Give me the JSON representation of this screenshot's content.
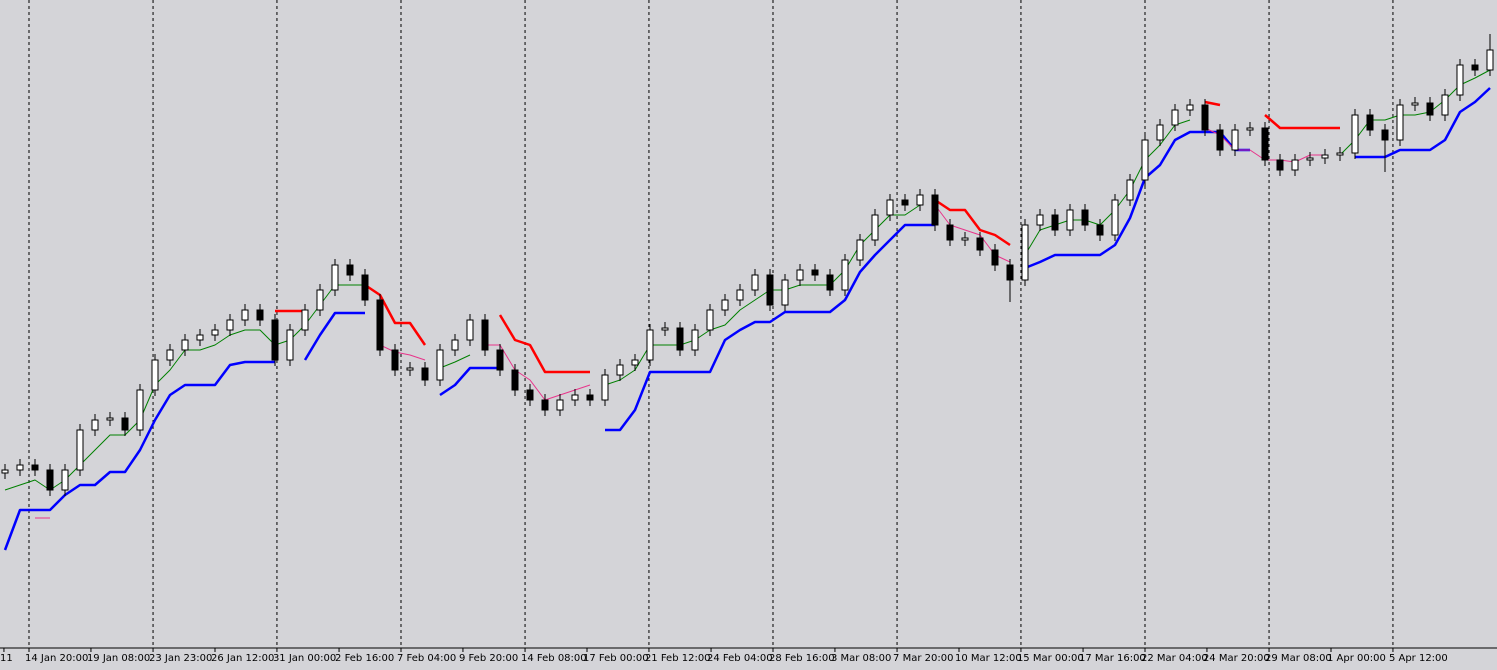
{
  "chart_data": {
    "type": "candlestick",
    "xlim": [
      -0.333,
      99.467
    ],
    "ylim": [
      0,
      648
    ],
    "grid": true,
    "grid_every": 2,
    "bull_color": "#ffffff",
    "bear_color": "#000000",
    "xticks": [
      {
        "value": -0.07,
        "label": "11"
      },
      {
        "value": 1.6,
        "label": "14 Jan 20:00"
      },
      {
        "value": 5.73,
        "label": "19 Jan 08:00"
      },
      {
        "value": 9.87,
        "label": "23 Jan 23:00"
      },
      {
        "value": 14.0,
        "label": "26 Jan 12:00"
      },
      {
        "value": 18.13,
        "label": "31 Jan 00:00"
      },
      {
        "value": 22.27,
        "label": "2 Feb 16:00"
      },
      {
        "value": 26.4,
        "label": "7 Feb 04:00"
      },
      {
        "value": 30.53,
        "label": "9 Feb 20:00"
      },
      {
        "value": 34.67,
        "label": "14 Feb 08:00"
      },
      {
        "value": 38.8,
        "label": "17 Feb 00:00"
      },
      {
        "value": 42.93,
        "label": "21 Feb 12:00"
      },
      {
        "value": 47.07,
        "label": "24 Feb 04:00"
      },
      {
        "value": 51.2,
        "label": "28 Feb 16:00"
      },
      {
        "value": 55.33,
        "label": "3 Mar 08:00"
      },
      {
        "value": 59.47,
        "label": "7 Mar 20:00"
      },
      {
        "value": 63.6,
        "label": "10 Mar 12:00"
      },
      {
        "value": 67.73,
        "label": "15 Mar 00:00"
      },
      {
        "value": 71.87,
        "label": "17 Mar 16:00"
      },
      {
        "value": 76.0,
        "label": "22 Mar 04:00"
      },
      {
        "value": 80.13,
        "label": "24 Mar 20:00"
      },
      {
        "value": 84.27,
        "label": "29 Mar 08:00"
      },
      {
        "value": 88.4,
        "label": "1 Apr 00:00"
      },
      {
        "value": 92.53,
        "label": "5 Apr 12:00"
      }
    ],
    "candles": [
      [
        175,
        184,
        169,
        178
      ],
      [
        178,
        189,
        172,
        183
      ],
      [
        183,
        189,
        172,
        178
      ],
      [
        178,
        184,
        152,
        158
      ],
      [
        158,
        184,
        152,
        178
      ],
      [
        178,
        224,
        172,
        218
      ],
      [
        218,
        234,
        212,
        228
      ],
      [
        228,
        236,
        222,
        230
      ],
      [
        230,
        236,
        212,
        218
      ],
      [
        218,
        264,
        212,
        258
      ],
      [
        258,
        294,
        252,
        288
      ],
      [
        288,
        304,
        282,
        298
      ],
      [
        298,
        314,
        292,
        308
      ],
      [
        308,
        319,
        302,
        313
      ],
      [
        313,
        324,
        307,
        318
      ],
      [
        318,
        334,
        312,
        328
      ],
      [
        328,
        344,
        322,
        338
      ],
      [
        338,
        344,
        322,
        328
      ],
      [
        328,
        334,
        282,
        288
      ],
      [
        288,
        324,
        282,
        318
      ],
      [
        318,
        344,
        312,
        338
      ],
      [
        338,
        364,
        332,
        358
      ],
      [
        358,
        389,
        352,
        383
      ],
      [
        383,
        389,
        367,
        373
      ],
      [
        373,
        379,
        342,
        348
      ],
      [
        348,
        354,
        292,
        298
      ],
      [
        298,
        304,
        272,
        278
      ],
      [
        278,
        286,
        272,
        280
      ],
      [
        280,
        286,
        262,
        268
      ],
      [
        268,
        304,
        262,
        298
      ],
      [
        298,
        314,
        292,
        308
      ],
      [
        308,
        334,
        302,
        328
      ],
      [
        328,
        334,
        292,
        298
      ],
      [
        298,
        304,
        272,
        278
      ],
      [
        278,
        284,
        252,
        258
      ],
      [
        258,
        264,
        242,
        248
      ],
      [
        248,
        254,
        232,
        238
      ],
      [
        238,
        254,
        232,
        248
      ],
      [
        248,
        259,
        242,
        253
      ],
      [
        253,
        259,
        242,
        248
      ],
      [
        248,
        279,
        242,
        273
      ],
      [
        273,
        289,
        267,
        283
      ],
      [
        283,
        294,
        277,
        288
      ],
      [
        288,
        324,
        282,
        318
      ],
      [
        318,
        326,
        312,
        320
      ],
      [
        320,
        326,
        292,
        298
      ],
      [
        298,
        324,
        292,
        318
      ],
      [
        318,
        344,
        312,
        338
      ],
      [
        338,
        354,
        332,
        348
      ],
      [
        348,
        364,
        342,
        358
      ],
      [
        358,
        379,
        352,
        373
      ],
      [
        373,
        379,
        337,
        343
      ],
      [
        343,
        374,
        337,
        368
      ],
      [
        368,
        384,
        362,
        378
      ],
      [
        378,
        384,
        367,
        373
      ],
      [
        373,
        379,
        352,
        358
      ],
      [
        358,
        394,
        352,
        388
      ],
      [
        388,
        414,
        382,
        408
      ],
      [
        408,
        439,
        402,
        433
      ],
      [
        433,
        454,
        427,
        448
      ],
      [
        448,
        454,
        437,
        443
      ],
      [
        443,
        459,
        437,
        453
      ],
      [
        453,
        459,
        417,
        423
      ],
      [
        423,
        429,
        402,
        408
      ],
      [
        408,
        416,
        402,
        410
      ],
      [
        410,
        416,
        392,
        398
      ],
      [
        398,
        404,
        377,
        383
      ],
      [
        383,
        389,
        346,
        368
      ],
      [
        368,
        429,
        362,
        423
      ],
      [
        423,
        439,
        417,
        433
      ],
      [
        433,
        439,
        412,
        418
      ],
      [
        418,
        444,
        412,
        438
      ],
      [
        438,
        444,
        417,
        423
      ],
      [
        423,
        429,
        407,
        413
      ],
      [
        413,
        454,
        407,
        448
      ],
      [
        448,
        474,
        442,
        468
      ],
      [
        468,
        514,
        462,
        508
      ],
      [
        508,
        529,
        502,
        523
      ],
      [
        523,
        544,
        517,
        538
      ],
      [
        538,
        549,
        532,
        543
      ],
      [
        543,
        549,
        512,
        518
      ],
      [
        518,
        524,
        492,
        498
      ],
      [
        498,
        524,
        492,
        518
      ],
      [
        518,
        526,
        512,
        520
      ],
      [
        520,
        526,
        482,
        488
      ],
      [
        488,
        494,
        472,
        478
      ],
      [
        478,
        494,
        472,
        488
      ],
      [
        488,
        496,
        482,
        490
      ],
      [
        490,
        499,
        484,
        493
      ],
      [
        493,
        501,
        487,
        495
      ],
      [
        495,
        539,
        489,
        533
      ],
      [
        533,
        539,
        512,
        518
      ],
      [
        518,
        524,
        476,
        508
      ],
      [
        508,
        549,
        502,
        543
      ],
      [
        543,
        551,
        537,
        545
      ],
      [
        545,
        551,
        527,
        533
      ],
      [
        533,
        559,
        527,
        553
      ],
      [
        553,
        589,
        547,
        583
      ],
      [
        583,
        589,
        572,
        578
      ],
      [
        578,
        614,
        572,
        598
      ]
    ],
    "lines": [
      {
        "color": "#0000ff",
        "width": 2.5,
        "values": [
          98,
          138,
          138,
          138,
          153,
          163,
          163,
          176,
          176,
          198,
          228,
          253,
          263,
          263,
          263,
          283,
          286,
          286,
          286,
          null,
          288,
          313,
          335,
          335,
          335,
          null,
          null,
          null,
          null,
          253,
          263,
          280,
          280,
          280,
          null,
          null,
          null,
          null,
          null,
          null,
          218,
          218,
          238,
          276,
          276,
          276,
          276,
          276,
          308,
          318,
          326,
          326,
          336,
          336,
          336,
          336,
          348,
          376,
          393,
          408,
          423,
          423,
          423,
          null,
          null,
          null,
          null,
          null,
          380,
          386,
          393,
          393,
          393,
          393,
          403,
          430,
          470,
          483,
          508,
          516,
          516,
          516,
          498,
          498,
          null,
          null,
          null,
          null,
          null,
          null,
          491,
          491,
          491,
          498,
          498,
          498,
          508,
          536,
          546,
          560
        ]
      },
      {
        "color": "#ff0000",
        "width": 2.5,
        "values": [
          null,
          null,
          null,
          null,
          null,
          null,
          null,
          null,
          null,
          null,
          null,
          null,
          null,
          null,
          null,
          null,
          null,
          null,
          337,
          337,
          337,
          null,
          null,
          null,
          363,
          353,
          325,
          325,
          303,
          null,
          null,
          null,
          null,
          333,
          308,
          303,
          276,
          276,
          276,
          276,
          null,
          null,
          null,
          null,
          null,
          null,
          null,
          null,
          null,
          null,
          null,
          null,
          null,
          null,
          null,
          null,
          null,
          null,
          null,
          null,
          null,
          null,
          448,
          438,
          438,
          418,
          413,
          403,
          null,
          null,
          null,
          null,
          null,
          null,
          null,
          null,
          null,
          null,
          null,
          null,
          546,
          543,
          null,
          null,
          533,
          520,
          520,
          520,
          520,
          520,
          null,
          null,
          null,
          null,
          null,
          null,
          null,
          null,
          null,
          null
        ]
      },
      {
        "color": "#008000",
        "width": 1,
        "values": [
          158,
          163,
          168,
          158,
          168,
          183,
          198,
          213,
          213,
          228,
          263,
          278,
          298,
          298,
          303,
          313,
          318,
          318,
          303,
          308,
          323,
          343,
          363,
          363,
          363,
          null,
          null,
          null,
          null,
          280,
          286,
          293,
          null,
          null,
          null,
          null,
          null,
          null,
          null,
          null,
          263,
          268,
          278,
          303,
          303,
          303,
          308,
          318,
          323,
          338,
          348,
          358,
          358,
          363,
          363,
          363,
          378,
          403,
          418,
          433,
          433,
          443,
          null,
          null,
          null,
          null,
          null,
          null,
          393,
          418,
          423,
          428,
          428,
          423,
          438,
          458,
          488,
          503,
          523,
          528,
          null,
          null,
          null,
          null,
          null,
          null,
          null,
          null,
          null,
          493,
          508,
          528,
          528,
          533,
          533,
          536,
          548,
          563,
          570,
          578
        ]
      },
      {
        "color": "#e8348a",
        "width": 1,
        "values": [
          null,
          null,
          130,
          130,
          null,
          null,
          null,
          null,
          null,
          null,
          null,
          null,
          null,
          null,
          null,
          null,
          null,
          null,
          null,
          null,
          null,
          null,
          null,
          null,
          null,
          303,
          296,
          293,
          288,
          null,
          null,
          null,
          303,
          303,
          278,
          268,
          248,
          253,
          258,
          263,
          null,
          null,
          null,
          null,
          null,
          null,
          null,
          null,
          null,
          null,
          null,
          null,
          null,
          null,
          null,
          null,
          null,
          null,
          null,
          null,
          null,
          null,
          443,
          423,
          418,
          413,
          393,
          386,
          null,
          null,
          null,
          null,
          null,
          null,
          null,
          null,
          null,
          null,
          null,
          null,
          520,
          513,
          498,
          498,
          488,
          488,
          486,
          493,
          493,
          null,
          null,
          null,
          null,
          null,
          null,
          null,
          null,
          null,
          null,
          null
        ]
      }
    ]
  }
}
